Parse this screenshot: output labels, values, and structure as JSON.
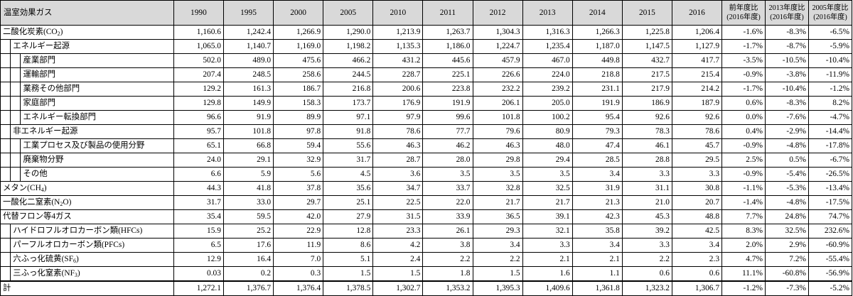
{
  "header": {
    "gas": "温室効果ガス",
    "years": [
      "1990",
      "1995",
      "2000",
      "2005",
      "2010",
      "2011",
      "2012",
      "2013",
      "2014",
      "2015",
      "2016"
    ],
    "ratio_prev_l1": "前年度比",
    "ratio_prev_l2": "(2016年度)",
    "ratio_2013_l1": "2013年度比",
    "ratio_2013_l2": "(2016年度)",
    "ratio_2005_l1": "2005年度比",
    "ratio_2005_l2": "(2016年度)"
  },
  "rows": [
    {
      "pre": "二酸化炭素(CO",
      "sub": "2",
      "post": ")",
      "values": [
        "1,160.6",
        "1,242.4",
        "1,266.9",
        "1,290.0",
        "1,213.9",
        "1,263.7",
        "1,304.3",
        "1,316.3",
        "1,266.3",
        "1,225.8",
        "1,206.4"
      ],
      "ratios": [
        "-1.6%",
        "-8.3%",
        "-6.5%"
      ]
    },
    {
      "pre": "エネルギー起源",
      "sub": "",
      "post": "",
      "values": [
        "1,065.0",
        "1,140.7",
        "1,169.0",
        "1,198.2",
        "1,135.3",
        "1,186.0",
        "1,224.7",
        "1,235.4",
        "1,187.0",
        "1,147.5",
        "1,127.9"
      ],
      "ratios": [
        "-1.7%",
        "-8.7%",
        "-5.9%"
      ]
    },
    {
      "pre": "産業部門",
      "sub": "",
      "post": "",
      "values": [
        "502.0",
        "489.0",
        "475.6",
        "466.2",
        "431.2",
        "445.6",
        "457.9",
        "467.0",
        "449.8",
        "432.7",
        "417.7"
      ],
      "ratios": [
        "-3.5%",
        "-10.5%",
        "-10.4%"
      ]
    },
    {
      "pre": "運輸部門",
      "sub": "",
      "post": "",
      "values": [
        "207.4",
        "248.5",
        "258.6",
        "244.5",
        "228.7",
        "225.1",
        "226.6",
        "224.0",
        "218.8",
        "217.5",
        "215.4"
      ],
      "ratios": [
        "-0.9%",
        "-3.8%",
        "-11.9%"
      ]
    },
    {
      "pre": "業務その他部門",
      "sub": "",
      "post": "",
      "values": [
        "129.2",
        "161.3",
        "186.7",
        "216.8",
        "200.6",
        "223.8",
        "232.2",
        "239.2",
        "231.1",
        "217.9",
        "214.2"
      ],
      "ratios": [
        "-1.7%",
        "-10.4%",
        "-1.2%"
      ]
    },
    {
      "pre": "家庭部門",
      "sub": "",
      "post": "",
      "values": [
        "129.8",
        "149.9",
        "158.3",
        "173.7",
        "176.9",
        "191.9",
        "206.1",
        "205.0",
        "191.9",
        "186.9",
        "187.9"
      ],
      "ratios": [
        "0.6%",
        "-8.3%",
        "8.2%"
      ]
    },
    {
      "pre": "エネルギー転換部門",
      "sub": "",
      "post": "",
      "values": [
        "96.6",
        "91.9",
        "89.9",
        "97.1",
        "97.9",
        "99.6",
        "101.8",
        "100.2",
        "95.4",
        "92.6",
        "92.6"
      ],
      "ratios": [
        "0.0%",
        "-7.6%",
        "-4.7%"
      ]
    },
    {
      "pre": "非エネルギー起源",
      "sub": "",
      "post": "",
      "values": [
        "95.7",
        "101.8",
        "97.8",
        "91.8",
        "78.6",
        "77.7",
        "79.6",
        "80.9",
        "79.3",
        "78.3",
        "78.6"
      ],
      "ratios": [
        "0.4%",
        "-2.9%",
        "-14.4%"
      ]
    },
    {
      "pre": "工業プロセス及び製品の使用分野",
      "sub": "",
      "post": "",
      "values": [
        "65.1",
        "66.8",
        "59.4",
        "55.6",
        "46.3",
        "46.2",
        "46.3",
        "48.0",
        "47.4",
        "46.1",
        "45.7"
      ],
      "ratios": [
        "-0.9%",
        "-4.8%",
        "-17.8%"
      ]
    },
    {
      "pre": "廃棄物分野",
      "sub": "",
      "post": "",
      "values": [
        "24.0",
        "29.1",
        "32.9",
        "31.7",
        "28.7",
        "28.0",
        "29.8",
        "29.4",
        "28.5",
        "28.8",
        "29.5"
      ],
      "ratios": [
        "2.5%",
        "0.5%",
        "-6.7%"
      ]
    },
    {
      "pre": "その他",
      "sub": "",
      "post": "",
      "values": [
        "6.6",
        "5.9",
        "5.6",
        "4.5",
        "3.6",
        "3.5",
        "3.5",
        "3.5",
        "3.4",
        "3.3",
        "3.3"
      ],
      "ratios": [
        "-0.9%",
        "-5.4%",
        "-26.5%"
      ]
    },
    {
      "pre": "メタン(CH",
      "sub": "4",
      "post": ")",
      "values": [
        "44.3",
        "41.8",
        "37.8",
        "35.6",
        "34.7",
        "33.7",
        "32.8",
        "32.5",
        "31.9",
        "31.1",
        "30.8"
      ],
      "ratios": [
        "-1.1%",
        "-5.3%",
        "-13.4%"
      ]
    },
    {
      "pre": "一酸化二窒素(N",
      "sub": "2",
      "post": "O)",
      "values": [
        "31.7",
        "33.0",
        "29.7",
        "25.1",
        "22.5",
        "22.0",
        "21.7",
        "21.7",
        "21.3",
        "21.0",
        "20.7"
      ],
      "ratios": [
        "-1.4%",
        "-4.8%",
        "-17.5%"
      ]
    },
    {
      "pre": "代替フロン等4ガス",
      "sub": "",
      "post": "",
      "values": [
        "35.4",
        "59.5",
        "42.0",
        "27.9",
        "31.5",
        "33.9",
        "36.5",
        "39.1",
        "42.3",
        "45.3",
        "48.8"
      ],
      "ratios": [
        "7.7%",
        "24.8%",
        "74.7%"
      ]
    },
    {
      "pre": "ハイドロフルオロカーボン類(HFCs)",
      "sub": "",
      "post": "",
      "values": [
        "15.9",
        "25.2",
        "22.9",
        "12.8",
        "23.3",
        "26.1",
        "29.3",
        "32.1",
        "35.8",
        "39.2",
        "42.5"
      ],
      "ratios": [
        "8.3%",
        "32.5%",
        "232.6%"
      ]
    },
    {
      "pre": "パーフルオロカーボン類(PFCs)",
      "sub": "",
      "post": "",
      "values": [
        "6.5",
        "17.6",
        "11.9",
        "8.6",
        "4.2",
        "3.8",
        "3.4",
        "3.3",
        "3.4",
        "3.3",
        "3.4"
      ],
      "ratios": [
        "2.0%",
        "2.9%",
        "-60.9%"
      ]
    },
    {
      "pre": "六ふっ化硫黄(SF",
      "sub": "6",
      "post": ")",
      "values": [
        "12.9",
        "16.4",
        "7.0",
        "5.1",
        "2.4",
        "2.2",
        "2.2",
        "2.1",
        "2.1",
        "2.2",
        "2.3"
      ],
      "ratios": [
        "4.7%",
        "7.2%",
        "-55.4%"
      ]
    },
    {
      "pre": "三ふっ化窒素(NF",
      "sub": "3",
      "post": ")",
      "values": [
        "0.03",
        "0.2",
        "0.3",
        "1.5",
        "1.5",
        "1.8",
        "1.5",
        "1.6",
        "1.1",
        "0.6",
        "0.6"
      ],
      "ratios": [
        "11.1%",
        "-60.8%",
        "-56.9%"
      ]
    },
    {
      "pre": "計",
      "sub": "",
      "post": "",
      "values": [
        "1,272.1",
        "1,376.7",
        "1,376.4",
        "1,378.5",
        "1,302.7",
        "1,353.2",
        "1,395.3",
        "1,409.6",
        "1,361.8",
        "1,323.2",
        "1,306.7"
      ],
      "ratios": [
        "-1.2%",
        "-7.3%",
        "-5.2%"
      ]
    }
  ]
}
